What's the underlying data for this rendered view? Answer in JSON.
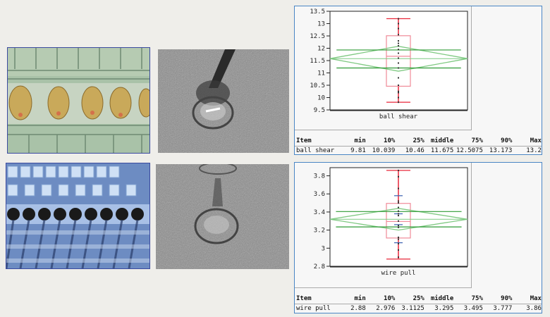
{
  "photos": [
    {
      "name": "chip-gold-pads-photo"
    },
    {
      "name": "ball-bond-sem-photo-top"
    },
    {
      "name": "chip-blue-pads-photo"
    },
    {
      "name": "ball-bond-sem-photo-bottom"
    }
  ],
  "tables": {
    "headers": [
      "Item",
      "min",
      "10%",
      "25%",
      "middle",
      "75%",
      "90%",
      "Max"
    ],
    "ball_shear": [
      "ball shear",
      "9.81",
      "10.039",
      "10.46",
      "11.675",
      "12.5075",
      "13.173",
      "13.2"
    ],
    "wire_pull": [
      "wire pull",
      "2.88",
      "2.976",
      "3.1125",
      "3.295",
      "3.495",
      "3.777",
      "3.86"
    ]
  },
  "chart_data": [
    {
      "type": "box",
      "xlabel": "ball shear",
      "ylim": [
        9.5,
        13.5
      ],
      "yticks": [
        "9.5",
        "10",
        "10.5",
        "11",
        "11.5",
        "12",
        "12.5",
        "13",
        "13.5"
      ],
      "box": {
        "min": 9.81,
        "q1": 10.46,
        "median": 11.675,
        "q3": 12.5075,
        "max": 13.2
      },
      "mean_diamond": {
        "mean": 11.58,
        "upper": 12.08,
        "lower": 11.07,
        "upper_inner": 11.93,
        "lower_inner": 11.2
      },
      "points": [
        9.81,
        10.0,
        10.2,
        10.25,
        10.5,
        10.8,
        11.2,
        11.4,
        11.6,
        11.8,
        11.95,
        12.1,
        12.2,
        12.3,
        12.55,
        12.8,
        13.0,
        13.2
      ],
      "colors": {
        "box": "#e8273a",
        "box_light": "#f08a98",
        "diamond": "#2e9a35",
        "diamond_light": "#7fc982"
      }
    },
    {
      "type": "box",
      "xlabel": "wire pull",
      "ylim": [
        2.8,
        3.89
      ],
      "yticks": [
        "2.8",
        "3",
        "3.2",
        "3.4",
        "3.6",
        "3.8"
      ],
      "box": {
        "min": 2.88,
        "q1": 3.1125,
        "median": 3.295,
        "q3": 3.495,
        "max": 3.86
      },
      "mean_diamond": {
        "mean": 3.32,
        "upper": 3.44,
        "lower": 3.2,
        "upper_inner": 3.405,
        "lower_inner": 3.235
      },
      "blue_marks": [
        3.58,
        3.38,
        3.26,
        3.06
      ],
      "points": [
        2.9,
        2.98,
        3.05,
        3.1,
        3.12,
        3.23,
        3.25,
        3.3,
        3.36,
        3.38,
        3.41,
        3.45,
        3.5,
        3.52,
        3.66,
        3.79,
        3.86
      ],
      "colors": {
        "box": "#e8273a",
        "box_light": "#f08a98",
        "diamond": "#2e9a35",
        "diamond_light": "#7fc982",
        "blue": "#3a5fb0"
      }
    }
  ]
}
